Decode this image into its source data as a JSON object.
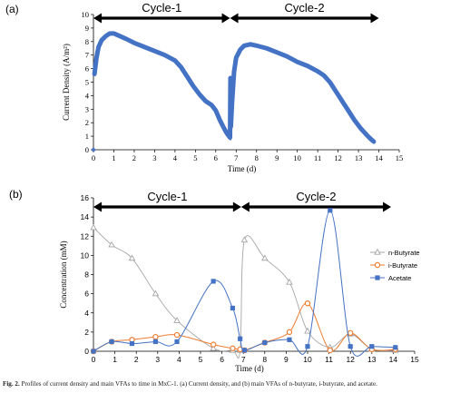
{
  "caption": {
    "label": "Fig. 2.",
    "text": "Profiles of current density and main VFAs to time in MxC-1. (a) Current density, and (b) main VFAs of n-butyrate, i-butyrate, and acetate."
  },
  "chart_data": [
    {
      "panel_label": "(a)",
      "type": "line",
      "xlabel": "Time (d)",
      "ylabel": "Current Density (A/m²)",
      "xlim": [
        0,
        15
      ],
      "ylim": [
        0,
        10
      ],
      "xticks": [
        0,
        1,
        2,
        3,
        4,
        5,
        6,
        7,
        8,
        9,
        10,
        11,
        12,
        13,
        14,
        15
      ],
      "yticks": [
        0,
        1,
        2,
        3,
        4,
        5,
        6,
        7,
        8,
        9,
        10
      ],
      "grid": false,
      "legend": "none",
      "color": "#4472c4",
      "cycles": [
        {
          "label": "Cycle-1",
          "x_start": 0,
          "x_end": 6.7
        },
        {
          "label": "Cycle-2",
          "x_start": 6.7,
          "x_end": 14
        }
      ],
      "series": [
        {
          "x": [
            0.05,
            0.15,
            0.25,
            0.4,
            0.6,
            0.8,
            1.0,
            1.3,
            1.6,
            2.0,
            2.5,
            3.0,
            3.5,
            4.0,
            4.3,
            4.6,
            4.9,
            5.2,
            5.5,
            5.8,
            6.0,
            6.2,
            6.4,
            6.55,
            6.65,
            6.7,
            6.72,
            6.74,
            6.8,
            6.9,
            7.0,
            7.2,
            7.4,
            7.7,
            8.0,
            8.5,
            9.0,
            9.5,
            10.0,
            10.5,
            11.0,
            11.3,
            11.6,
            11.9,
            12.2,
            12.5,
            12.8,
            13.1,
            13.4,
            13.6,
            13.75
          ],
          "values": [
            5.6,
            6.8,
            7.6,
            8.1,
            8.4,
            8.6,
            8.6,
            8.4,
            8.2,
            7.9,
            7.6,
            7.3,
            7.0,
            6.6,
            6.1,
            5.4,
            4.7,
            4.1,
            3.6,
            3.3,
            2.9,
            2.2,
            1.6,
            1.2,
            1.0,
            0.9,
            5.3,
            1.7,
            3.5,
            5.8,
            6.8,
            7.4,
            7.7,
            7.8,
            7.7,
            7.5,
            7.2,
            6.9,
            6.5,
            6.2,
            5.8,
            5.5,
            5.0,
            4.3,
            3.6,
            2.9,
            2.2,
            1.6,
            1.1,
            0.8,
            0.6
          ]
        }
      ]
    },
    {
      "panel_label": "(b)",
      "type": "line",
      "xlabel": "Time (d)",
      "ylabel": "Concentration (mM)",
      "xlim": [
        0,
        15
      ],
      "ylim": [
        0,
        16
      ],
      "xticks": [
        0,
        1,
        2,
        3,
        4,
        5,
        6,
        7,
        8,
        9,
        10,
        11,
        12,
        13,
        14,
        15
      ],
      "yticks": [
        0,
        2,
        4,
        6,
        8,
        10,
        12,
        14,
        16
      ],
      "grid": false,
      "legend": "right",
      "cycles": [
        {
          "label": "Cycle-1",
          "x_start": 0,
          "x_end": 6.9
        },
        {
          "label": "Cycle-2",
          "x_start": 6.9,
          "x_end": 13.9
        }
      ],
      "series": [
        {
          "name": "n-Butyrate",
          "color": "#a5a5a5",
          "marker": "triangle",
          "x": [
            0,
            0.85,
            1.8,
            2.9,
            3.9,
            5.6,
            6.5,
            6.85,
            7.05,
            8.0,
            9.15,
            10.0,
            11.05,
            12.0,
            13.0,
            14.1
          ],
          "values": [
            12.9,
            11.1,
            9.7,
            6.0,
            3.2,
            0.3,
            0.1,
            0.1,
            11.6,
            9.7,
            7.2,
            2.1,
            0.4,
            1.8,
            0.2,
            0.1
          ]
        },
        {
          "name": "i-Butyrate",
          "color": "#ed7d31",
          "marker": "circle",
          "x": [
            0,
            0.85,
            1.8,
            2.9,
            3.9,
            5.6,
            6.5,
            6.85,
            7.05,
            8.0,
            9.15,
            10.0,
            11.05,
            12.0,
            13.0,
            14.1
          ],
          "values": [
            0,
            1.0,
            1.2,
            1.5,
            1.7,
            0.7,
            0.3,
            0.2,
            0.1,
            0.9,
            2.0,
            5.0,
            0.1,
            1.9,
            0.2,
            0.2
          ]
        },
        {
          "name": "Acetate",
          "color": "#4472c4",
          "marker": "square",
          "x": [
            0,
            0.85,
            1.8,
            2.9,
            3.9,
            5.6,
            6.5,
            6.85,
            7.05,
            8.0,
            9.15,
            10.0,
            11.05,
            12.0,
            13.0,
            14.1
          ],
          "values": [
            0,
            1.0,
            0.8,
            1.0,
            1.0,
            7.3,
            4.5,
            1.3,
            0.1,
            0.9,
            1.2,
            0.5,
            14.7,
            0.5,
            0.5,
            0.4
          ]
        }
      ]
    }
  ]
}
